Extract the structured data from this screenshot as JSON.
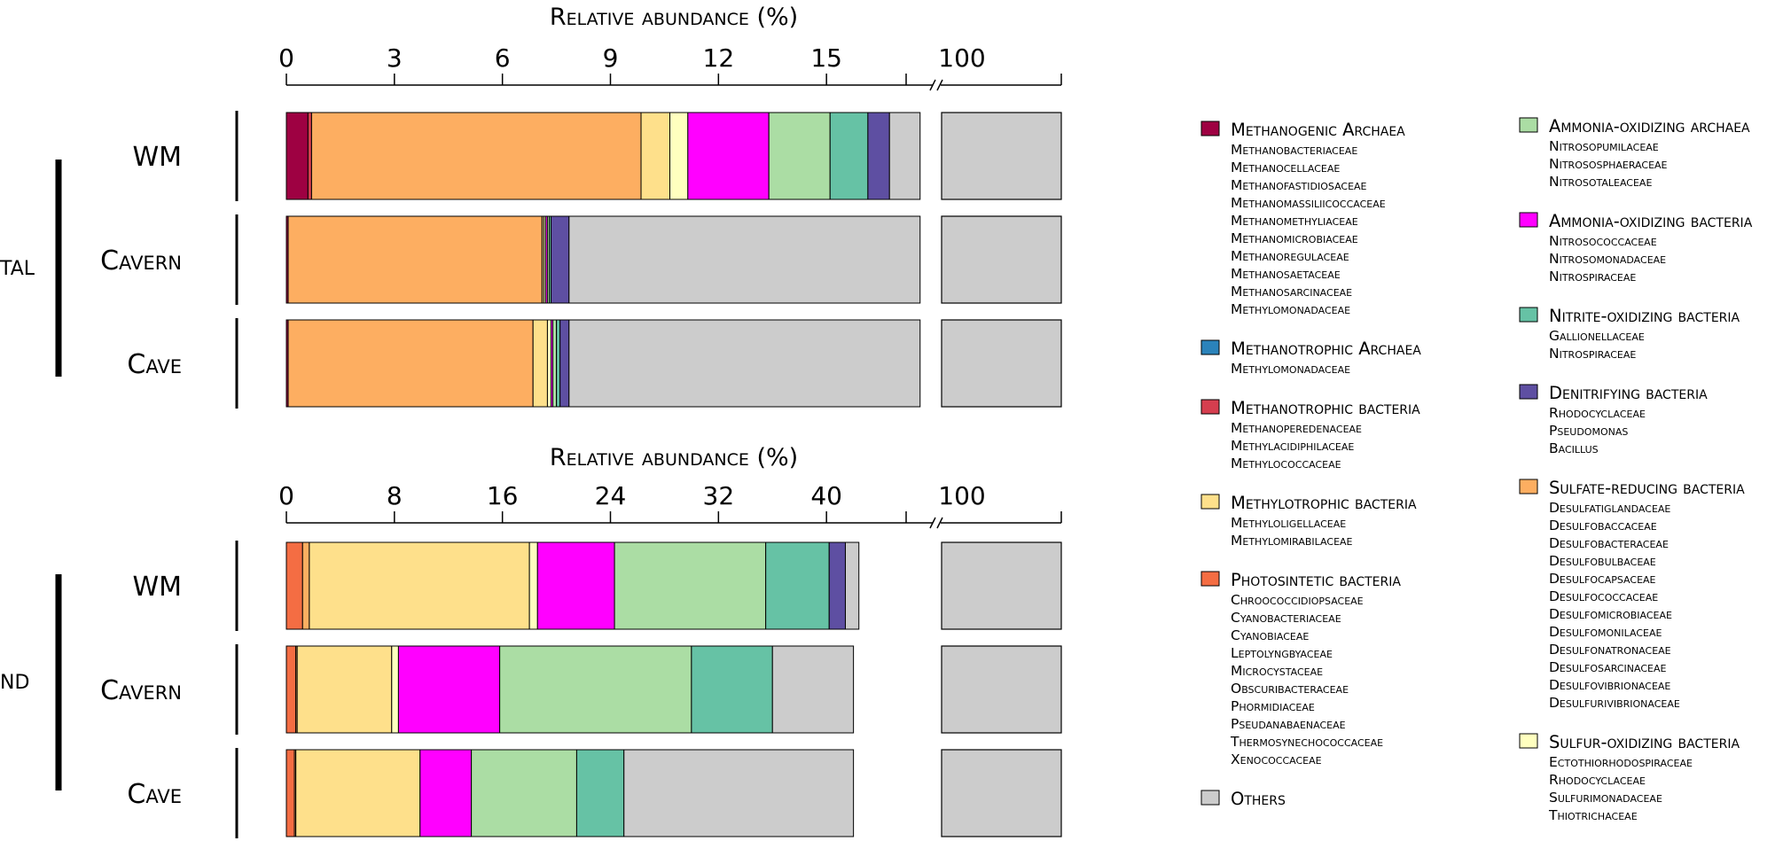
{
  "chart_data": [
    {
      "type": "bar",
      "orientation": "horizontal",
      "stacked": true,
      "group_label": "TAL",
      "xlabel": "Relative abundance (%)",
      "ticks": [
        "0",
        "3",
        "6",
        "9",
        "12",
        "15",
        "100"
      ],
      "tick_values": [
        0,
        3,
        6,
        9,
        12,
        15
      ],
      "xlim": [
        0,
        18
      ],
      "axis_break": true,
      "break_tick_label": "100",
      "categories": [
        "WM",
        "Cavern",
        "Cave"
      ],
      "series": [
        {
          "name": "Methanogenic Archaea",
          "values": [
            0.6,
            0.05,
            0.05
          ]
        },
        {
          "name": "Methanotrophic bacteria",
          "values": [
            0.1,
            0.0,
            0.0
          ]
        },
        {
          "name": "Sulfate-reducing bacteria",
          "values": [
            9.15,
            7.05,
            6.8
          ]
        },
        {
          "name": "Methylotrophic bacteria",
          "values": [
            0.8,
            0.05,
            0.4
          ]
        },
        {
          "name": "Sulfur-oxidizing bacteria",
          "values": [
            0.5,
            0.05,
            0.1
          ]
        },
        {
          "name": "Ammonia-oxidizing bacteria",
          "values": [
            2.25,
            0.05,
            0.05
          ]
        },
        {
          "name": "Ammonia-oxidizing archaea",
          "values": [
            1.7,
            0.05,
            0.1
          ]
        },
        {
          "name": "Nitrite-oxidizing bacteria",
          "values": [
            1.05,
            0.05,
            0.1
          ]
        },
        {
          "name": "Denitrifying bacteria",
          "values": [
            0.6,
            0.5,
            0.25
          ]
        },
        {
          "name": "Others",
          "values": [
            0.85,
            9.75,
            9.75
          ]
        }
      ]
    },
    {
      "type": "bar",
      "orientation": "horizontal",
      "stacked": true,
      "group_label": "ND",
      "xlabel": "Relative abundance (%)",
      "ticks": [
        "0",
        "8",
        "16",
        "24",
        "32",
        "40",
        "100"
      ],
      "tick_values": [
        0,
        8,
        16,
        24,
        32,
        40
      ],
      "xlim": [
        0,
        48
      ],
      "axis_break": true,
      "break_tick_label": "100",
      "categories": [
        "WM",
        "Cavern",
        "Cave"
      ],
      "series": [
        {
          "name": "Photosintetic bacteria",
          "values": [
            1.2,
            0.7,
            0.6
          ]
        },
        {
          "name": "Sulfate-reducing bacteria",
          "values": [
            0.5,
            0.1,
            0.1
          ]
        },
        {
          "name": "Methylotrophic bacteria",
          "values": [
            16.3,
            7.0,
            9.2
          ]
        },
        {
          "name": "Sulfur-oxidizing bacteria",
          "values": [
            0.6,
            0.5,
            0.0
          ]
        },
        {
          "name": "Ammonia-oxidizing bacteria",
          "values": [
            5.7,
            7.5,
            3.8
          ]
        },
        {
          "name": "Ammonia-oxidizing archaea",
          "values": [
            11.2,
            14.2,
            7.8
          ]
        },
        {
          "name": "Nitrite-oxidizing bacteria",
          "values": [
            4.7,
            6.0,
            3.5
          ]
        },
        {
          "name": "Denitrifying bacteria",
          "values": [
            1.2,
            0.0,
            0.0
          ]
        },
        {
          "name": "Others",
          "values": [
            1.0,
            6.0,
            17.0
          ]
        }
      ]
    }
  ],
  "legend": {
    "col1": [
      {
        "name": "Methanogenic Archaea",
        "color": "#9e0142",
        "families": [
          "Methanobacteriaceae",
          "Methanocellaceae",
          "Methanofastidiosaceae",
          "Methanomassiliicoccaceae",
          "Methanomethyliaceae",
          "Methanomicrobiaceae",
          "Methanoregulaceae",
          "Methanosaetaceae",
          "Methanosarcinaceae",
          "Methylomonadaceae"
        ]
      },
      {
        "name": "Methanotrophic Archaea",
        "color": "#2b83ba",
        "families": [
          "Methylomonadaceae"
        ]
      },
      {
        "name": "Methanotrophic bacteria",
        "color": "#d53e4f",
        "families": [
          "Methanoperedenaceae",
          "Methylacidiphilaceae",
          "Methylococcaceae"
        ]
      },
      {
        "name": "Methylotrophic bacteria",
        "color": "#fee08b",
        "families": [
          "Methyloligellaceae",
          "Methylomirabilaceae"
        ]
      },
      {
        "name": "Photosintetic bacteria",
        "color": "#f46d43",
        "families": [
          "Chroococcidiopsaceae",
          "Cyanobacteriaceae",
          "Cyanobiaceae",
          "Leptolyngbyaceae",
          "Microcystaceae",
          "Obscuribacteraceae",
          "Phormidiaceae",
          "Pseudanabaenaceae",
          "Thermosynechococcaceae",
          "Xenococcaceae"
        ]
      },
      {
        "name": "Others",
        "color": "#cccccc",
        "families": []
      }
    ],
    "col2": [
      {
        "name": "Ammonia-oxidizing archaea",
        "color": "#abdda4",
        "families": [
          "Nitrosopumilaceae",
          "Nitrososphaeraceae",
          "Nitrosotaleaceae"
        ]
      },
      {
        "name": "Ammonia-oxidizing bacteria",
        "color": "#ff00ff",
        "families": [
          "Nitrosococcaceae",
          "Nitrosomonadaceae",
          "Nitrospiraceae"
        ]
      },
      {
        "name": "Nitrite-oxidizing bacteria",
        "color": "#66c2a5",
        "families": [
          "Gallionellaceae",
          "Nitrospiraceae"
        ]
      },
      {
        "name": "Denitrifying bacteria",
        "color": "#5e4fa2",
        "families": [
          "Rhodocyclaceae",
          "Pseudomonas",
          "Bacillus"
        ]
      },
      {
        "name": "Sulfate-reducing bacteria",
        "color": "#fdae61",
        "families": [
          "Desulfatiglandaceae",
          "Desulfobaccaceae",
          "Desulfobacteraceae",
          "Desulfobulbaceae",
          "Desulfocapsaceae",
          "Desulfococcaceae",
          "Desulfomicrobiaceae",
          "Desulfomonilaceae",
          "Desulfonatronaceae",
          "Desulfosarcinaceae",
          "Desulfovibrionaceae",
          "Desulfurivibrionaceae"
        ]
      },
      {
        "name": "Sulfur-oxidizing bacteria",
        "color": "#ffffbf",
        "families": [
          "Ectothiorhodospiraceae",
          "Rhodocyclaceae",
          "Sulfurimonadaceae",
          "Thiotrichaceae"
        ]
      }
    ]
  }
}
